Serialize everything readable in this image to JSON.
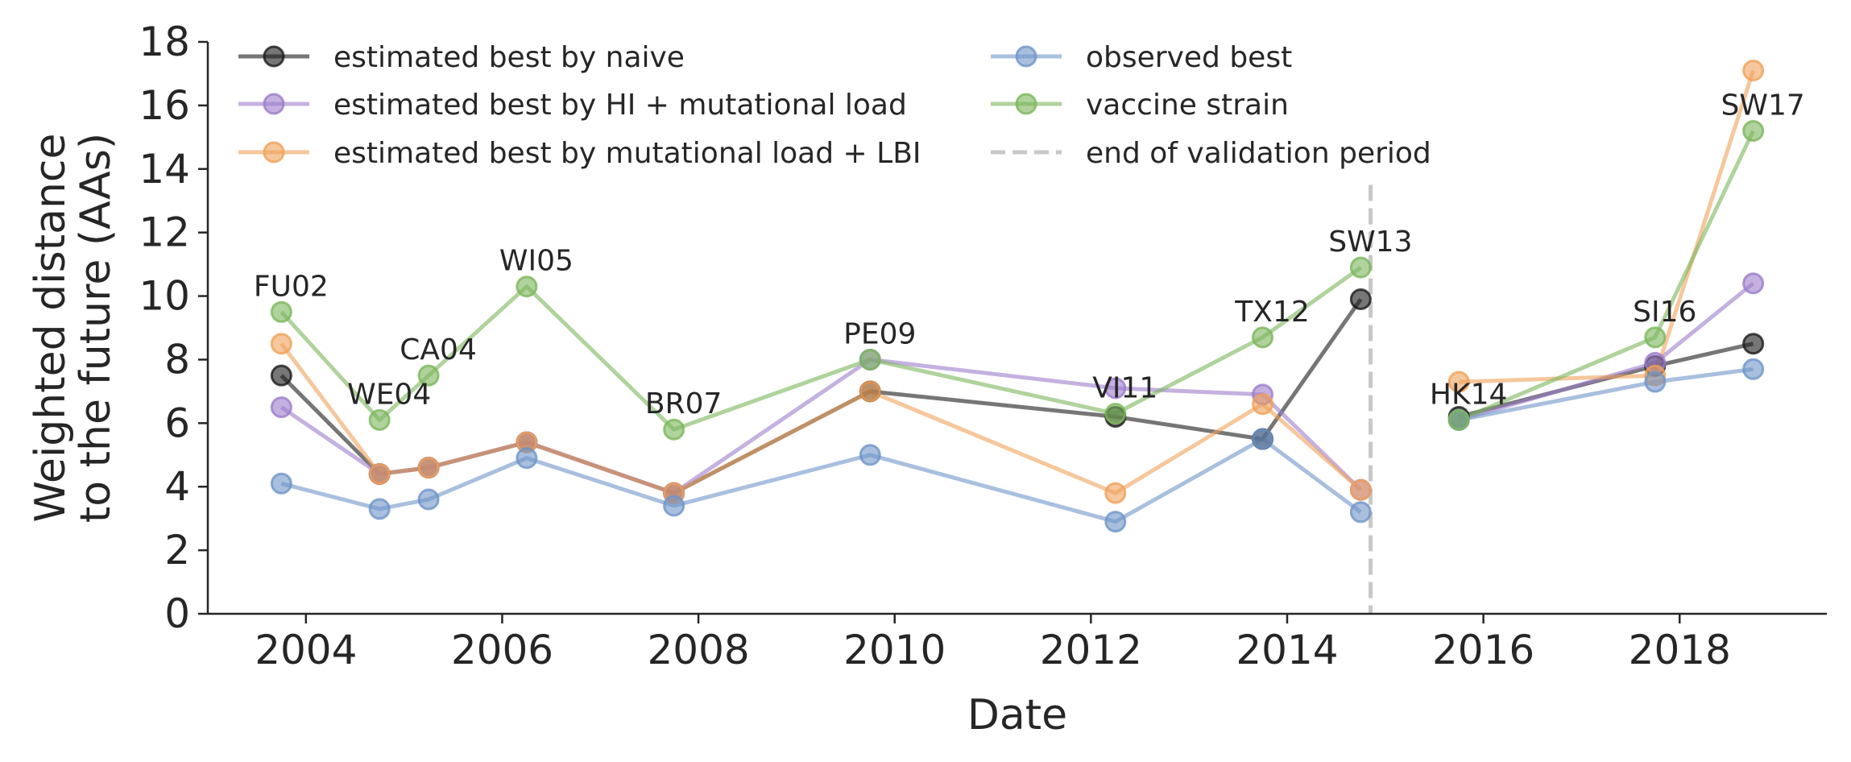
{
  "chart_data": {
    "type": "line",
    "xlabel": "Date",
    "ylabel_lines": [
      "Weighted distance",
      "to the future (AAs)"
    ],
    "xlim": [
      2003.0,
      2019.5
    ],
    "ylim": [
      0,
      18
    ],
    "xticks": [
      2004,
      2006,
      2008,
      2010,
      2012,
      2014,
      2016,
      2018
    ],
    "xtick_labels": [
      "2004",
      "2006",
      "2008",
      "2010",
      "2012",
      "2014",
      "2016",
      "2018"
    ],
    "yticks": [
      0,
      2,
      4,
      6,
      8,
      10,
      12,
      14,
      16,
      18
    ],
    "ytick_labels": [
      "0",
      "2",
      "4",
      "6",
      "8",
      "10",
      "12",
      "14",
      "16",
      "18"
    ],
    "grid": false,
    "legend_position": "top",
    "series": [
      {
        "name": "estimated best by naive",
        "color": "#1a1a1a",
        "x": [
          2003.75,
          2004.75,
          2005.25,
          2006.25,
          2007.75,
          2009.75,
          2012.25,
          2013.75,
          2014.75,
          2015.75,
          2017.75,
          2018.75
        ],
        "y": [
          7.5,
          4.4,
          4.6,
          5.4,
          3.8,
          7.0,
          6.2,
          5.5,
          9.9,
          6.2,
          7.8,
          8.5
        ]
      },
      {
        "name": "estimated best by HI + mutational load",
        "color": "#9c7dcc",
        "x": [
          2003.75,
          2004.75,
          2005.25,
          2006.25,
          2007.75,
          2009.75,
          2012.25,
          2013.75,
          2014.75,
          2015.75,
          2017.75,
          2018.75
        ],
        "y": [
          6.5,
          4.4,
          4.6,
          5.4,
          3.8,
          8.0,
          7.1,
          6.9,
          3.9,
          6.1,
          7.9,
          10.4
        ]
      },
      {
        "name": "estimated best by mutational load + LBI",
        "color": "#f0a15a",
        "x": [
          2003.75,
          2004.75,
          2005.25,
          2006.25,
          2007.75,
          2009.75,
          2012.25,
          2013.75,
          2014.75,
          2015.75,
          2017.75,
          2018.75
        ],
        "y": [
          8.5,
          4.4,
          4.6,
          5.4,
          3.8,
          7.0,
          3.8,
          6.6,
          3.9,
          7.3,
          7.5,
          17.1
        ]
      },
      {
        "name": "observed best",
        "color": "#6f95c8",
        "x": [
          2003.75,
          2004.75,
          2005.25,
          2006.25,
          2007.75,
          2009.75,
          2012.25,
          2013.75,
          2014.75,
          2015.75,
          2017.75,
          2018.75
        ],
        "y": [
          4.1,
          3.3,
          3.6,
          4.9,
          3.4,
          5.0,
          2.9,
          5.5,
          3.2,
          6.1,
          7.3,
          7.7
        ]
      },
      {
        "name": "vaccine strain",
        "color": "#7cb65c",
        "x": [
          2003.75,
          2004.75,
          2005.25,
          2006.25,
          2007.75,
          2009.75,
          2012.25,
          2013.75,
          2014.75,
          2015.75,
          2017.75,
          2018.75
        ],
        "y": [
          9.5,
          6.1,
          7.5,
          10.3,
          5.8,
          8.0,
          6.3,
          8.7,
          10.9,
          6.1,
          8.7,
          15.2
        ]
      }
    ],
    "validation_line": {
      "name": "end of validation period",
      "x": 2014.85,
      "color": "#c8c8c8",
      "y_top": 13.5
    },
    "strain_labels": [
      {
        "text": "FU02",
        "x": 2003.75,
        "y": 9.5
      },
      {
        "text": "WE04",
        "x": 2004.75,
        "y": 6.1
      },
      {
        "text": "CA04",
        "x": 2005.25,
        "y": 7.5
      },
      {
        "text": "WI05",
        "x": 2006.25,
        "y": 10.3
      },
      {
        "text": "BR07",
        "x": 2007.75,
        "y": 5.8
      },
      {
        "text": "PE09",
        "x": 2009.75,
        "y": 8.0
      },
      {
        "text": "VI11",
        "x": 2012.25,
        "y": 6.3
      },
      {
        "text": "TX12",
        "x": 2013.75,
        "y": 8.7
      },
      {
        "text": "SW13",
        "x": 2014.75,
        "y": 10.9
      },
      {
        "text": "HK14",
        "x": 2015.75,
        "y": 6.1
      },
      {
        "text": "SI16",
        "x": 2017.75,
        "y": 8.7
      },
      {
        "text": "SW17",
        "x": 2018.75,
        "y": 15.2
      }
    ]
  }
}
